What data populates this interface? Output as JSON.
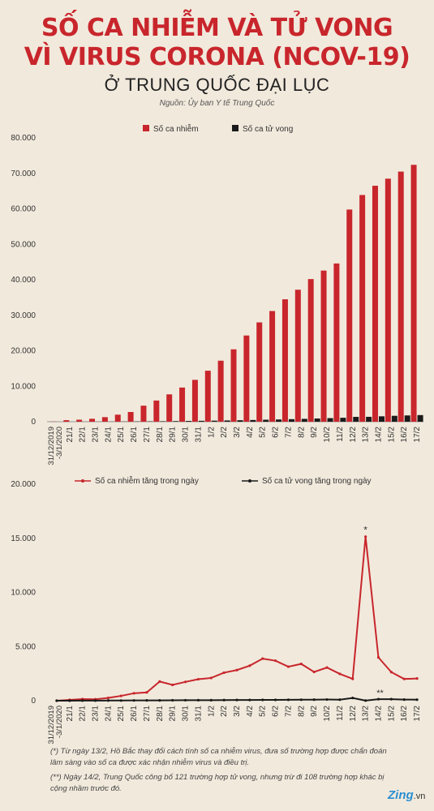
{
  "header": {
    "title_line1": "SỐ CA NHIỄM VÀ TỬ VONG",
    "title_line2": "VÌ VIRUS CORONA (NCOV-19)",
    "subtitle": "Ở TRUNG QUỐC ĐẠI LỤC",
    "source": "Nguồn: Ủy ban Y tế Trung Quốc"
  },
  "colors": {
    "infected": "#c8262c",
    "deaths": "#1a1a1a",
    "title": "#c8262c",
    "background": "#f1e9dc"
  },
  "chart_data": [
    {
      "type": "bar",
      "categories": [
        "31/12/2019 -3/1/2020",
        "21/1",
        "22/1",
        "23/1",
        "24/1",
        "25/1",
        "26/1",
        "27/1",
        "28/1",
        "29/1",
        "30/1",
        "31/1",
        "1/2",
        "2/2",
        "3/2",
        "4/2",
        "5/2",
        "6/2",
        "7/2",
        "8/2",
        "9/2",
        "10/2",
        "11/2",
        "12/2",
        "13/2",
        "14/2",
        "15/2",
        "16/2",
        "17/2"
      ],
      "series": [
        {
          "name": "Số ca nhiễm",
          "values": [
            50,
            440,
            570,
            830,
            1290,
            1990,
            2740,
            4520,
            5970,
            7710,
            9630,
            11800,
            14380,
            17200,
            20400,
            24300,
            28000,
            31200,
            34500,
            37200,
            40200,
            42600,
            44600,
            59800,
            63900,
            66500,
            68500,
            70500,
            72400
          ]
        },
        {
          "name": "Số ca tử vong",
          "values": [
            0,
            9,
            17,
            25,
            41,
            56,
            80,
            106,
            132,
            170,
            213,
            259,
            304,
            361,
            425,
            490,
            563,
            636,
            720,
            811,
            908,
            1016,
            1113,
            1367,
            1380,
            1523,
            1665,
            1772,
            1868
          ]
        }
      ],
      "ylim": [
        0,
        80000
      ],
      "yticks": [
        "0",
        "10.000",
        "20.000",
        "30.000",
        "40.000",
        "50.000",
        "60.000",
        "70.000",
        "80.000"
      ],
      "legend_placement": "top-right",
      "grid": false
    },
    {
      "type": "line",
      "categories": [
        "31/12/2019 -3/1/2020",
        "21/1",
        "22/1",
        "23/1",
        "24/1",
        "25/1",
        "26/1",
        "27/1",
        "28/1",
        "29/1",
        "30/1",
        "31/1",
        "1/2",
        "2/2",
        "3/2",
        "4/2",
        "5/2",
        "6/2",
        "7/2",
        "8/2",
        "9/2",
        "10/2",
        "11/2",
        "12/2",
        "13/2",
        "14/2",
        "15/2",
        "16/2",
        "17/2"
      ],
      "series": [
        {
          "name": "Số ca nhiễm tăng trong ngày",
          "values": [
            0,
            77,
            149,
            131,
            259,
            444,
            688,
            769,
            1771,
            1459,
            1737,
            1982,
            2102,
            2590,
            2829,
            3235,
            3887,
            3694,
            3143,
            3399,
            2656,
            3062,
            2478,
            2015,
            15152,
            4000,
            2641,
            2009,
            2048
          ]
        },
        {
          "name": "Số ca tử vong tăng trong ngày",
          "values": [
            0,
            0,
            8,
            8,
            16,
            15,
            24,
            26,
            26,
            38,
            43,
            46,
            45,
            57,
            64,
            65,
            73,
            73,
            86,
            89,
            97,
            108,
            97,
            254,
            13,
            143,
            142,
            105,
            98
          ]
        }
      ],
      "ylim": [
        0,
        20000
      ],
      "yticks": [
        "0",
        "5.000",
        "10.000",
        "15.000",
        "20.000"
      ],
      "annotations": [
        "*",
        "**"
      ],
      "legend_placement": "top",
      "grid": false
    }
  ],
  "notes": {
    "note1": "(*) Từ ngày 13/2, Hồ Bắc thay đổi cách tính số ca nhiễm virus, đưa số trường hợp được chẩn đoán lâm sàng vào số ca được xác nhận nhiễm virus và điều trị.",
    "note2": "(**) Ngày 14/2, Trung Quốc công bố 121 trường hợp tử vong, nhưng trừ đi 108 trường hợp khác bị cộng nhầm trước đó."
  },
  "logo": {
    "brand": "Zing",
    "suffix": ".vn"
  }
}
